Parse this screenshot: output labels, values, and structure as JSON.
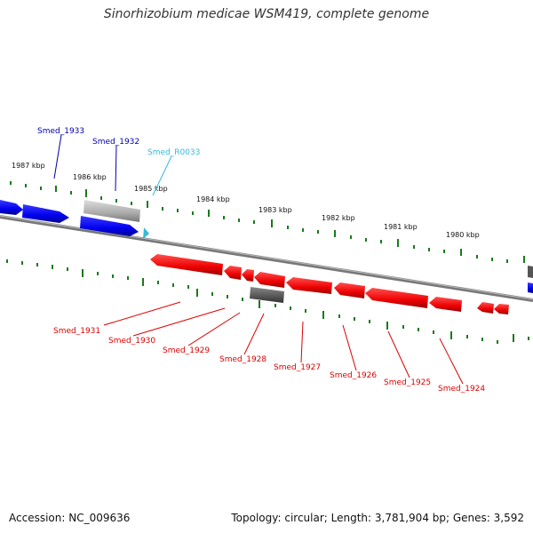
{
  "title": "Sinorhizobium medicae WSM419, complete genome",
  "footer": {
    "accession": "Accession: NC_009636",
    "summary": "Topology: circular; Length: 3,781,904 bp; Genes: 3,592"
  },
  "colors": {
    "forward": "#0000ee",
    "reverse": "#ee0000",
    "rna": "#33bbdd",
    "pseudo": "#999999",
    "backbone": "#777777",
    "tick": "#1a7a1a"
  },
  "ruler_labels": [
    "1987 kbp",
    "1986 kbp",
    "1985 kbp",
    "1984 kbp",
    "1983 kbp",
    "1982 kbp",
    "1981 kbp",
    "1980 kbp"
  ],
  "gene_labels": {
    "forward": [
      "Smed_1933",
      "Smed_1932"
    ],
    "rna": [
      "Smed_R0033"
    ],
    "reverse": [
      "Smed_1931",
      "Smed_1930",
      "Smed_1929",
      "Smed_1928",
      "Smed_1927",
      "Smed_1926",
      "Smed_1925",
      "Smed_1924"
    ]
  }
}
